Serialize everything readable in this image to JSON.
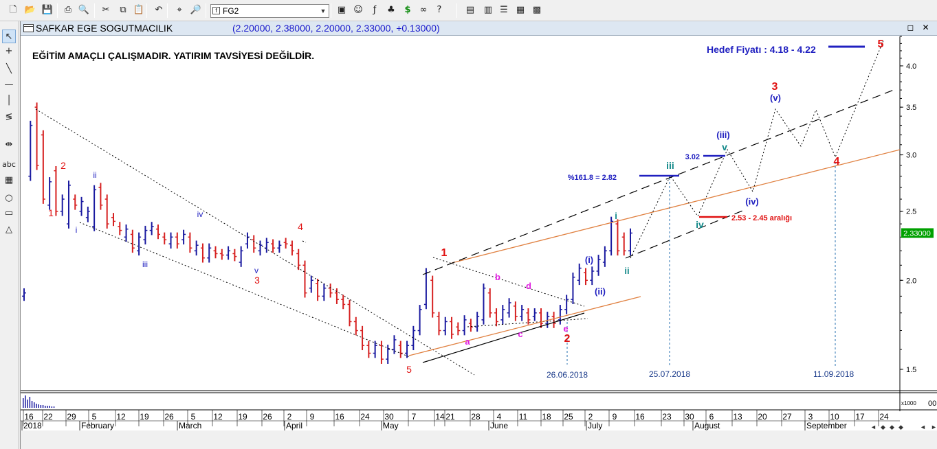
{
  "toolbar": {
    "symbol": "FG2",
    "icons": [
      "new-icon",
      "open-icon",
      "save-icon",
      "print-icon",
      "print-preview-icon",
      "cut-icon",
      "copy-icon",
      "paste-icon",
      "undo-icon",
      "crosshair-icon",
      "zoom-icon",
      "indicator-icon",
      "expert-icon",
      "function-icon",
      "tree-icon",
      "dollar-icon",
      "binoculars-icon",
      "help-icon",
      "cascade-icon",
      "tile-vertical-icon",
      "tile-horizontal-icon",
      "tile-grid-icon",
      "tile-config-icon"
    ]
  },
  "left_tools": [
    "pointer-icon",
    "crosshair-tool-icon",
    "trendline-tool-icon",
    "horizontal-line-icon",
    "vertical-line-icon",
    "fibonacci-icon",
    "spread-icon",
    "text-tool-icon",
    "grid-tool-icon",
    "ellipse-tool-icon",
    "rectangle-tool-icon",
    "triangle-tool-icon"
  ],
  "left_tools_text": {
    "text_tool": "abc"
  },
  "window": {
    "title": "SAFKAR EGE SOGUTMACILIK",
    "ohlc": "(2.20000, 2.38000, 2.20000, 2.33000, +0.13000)",
    "buttons": {
      "restore": "◻",
      "close": "✕"
    }
  },
  "disclaimer": "EĞİTİM AMAÇLI ÇALIŞMADIR. YATIRIM TAVSİYESİ DEĞİLDİR.",
  "target_text": "Hedef Fiyatı : 4.18 - 4.22",
  "colors": {
    "up": "#1a1aa0",
    "down": "#d62020",
    "wave_red": "#e01010",
    "wave_blue": "#2020c0",
    "wave_teal": "#118888",
    "wave_magenta": "#e020e0",
    "orange_line": "#e08040",
    "price_box": "#00a000"
  },
  "chart_data": {
    "type": "candlestick",
    "scale": "log",
    "ylim": [
      1.4,
      4.4
    ],
    "y_ticks": [
      "1.5",
      "2.0",
      "2.5",
      "3.0",
      "3.5",
      "4.0"
    ],
    "last_price": "2.33000",
    "x_day_ticks": [
      "16",
      "22",
      "29",
      "5",
      "12",
      "19",
      "26",
      "5",
      "12",
      "19",
      "26",
      "2",
      "9",
      "16",
      "24",
      "30",
      "7",
      "14",
      "21",
      "28",
      "4",
      "11",
      "18",
      "25",
      "2",
      "9",
      "16",
      "23",
      "30",
      "6",
      "13",
      "20",
      "27",
      "3",
      "10",
      "17",
      "24"
    ],
    "x_month_ticks": [
      "2018",
      "February",
      "March",
      "April",
      "May",
      "June",
      "July",
      "August",
      "September"
    ],
    "volume_label": "x1000",
    "volume_axis_label": "00",
    "price_path": [
      [
        1.9,
        1.92
      ],
      [
        2.8,
        3.3
      ],
      [
        3.5,
        2.9
      ],
      [
        3.2,
        2.6
      ],
      [
        2.55,
        2.75
      ],
      [
        2.85,
        2.5
      ],
      [
        2.5,
        2.6
      ],
      [
        2.4,
        2.72
      ],
      [
        2.6,
        2.55
      ],
      [
        2.5,
        2.58
      ],
      [
        2.45,
        2.5
      ],
      [
        2.38,
        2.68
      ],
      [
        2.7,
        2.55
      ],
      [
        2.6,
        2.4
      ],
      [
        2.45,
        2.42
      ],
      [
        2.38,
        2.35
      ],
      [
        2.3,
        2.36
      ],
      [
        2.32,
        2.22
      ],
      [
        2.2,
        2.3
      ],
      [
        2.28,
        2.35
      ],
      [
        2.35,
        2.38
      ],
      [
        2.36,
        2.32
      ],
      [
        2.3,
        2.28
      ],
      [
        2.25,
        2.3
      ],
      [
        2.3,
        2.25
      ],
      [
        2.28,
        2.32
      ],
      [
        2.3,
        2.22
      ],
      [
        2.2,
        2.24
      ],
      [
        2.22,
        2.15
      ],
      [
        2.15,
        2.22
      ],
      [
        2.2,
        2.18
      ],
      [
        2.18,
        2.17
      ],
      [
        2.17,
        2.2
      ],
      [
        2.18,
        2.16
      ],
      [
        2.12,
        2.2
      ],
      [
        2.25,
        2.3
      ],
      [
        2.28,
        2.22
      ],
      [
        2.2,
        2.24
      ],
      [
        2.22,
        2.26
      ],
      [
        2.25,
        2.22
      ],
      [
        2.22,
        2.24
      ],
      [
        2.26,
        2.25
      ],
      [
        2.24,
        2.2
      ],
      [
        2.18,
        2.1
      ],
      [
        2.1,
        1.92
      ],
      [
        1.95,
        2.0
      ],
      [
        1.98,
        1.9
      ],
      [
        1.9,
        1.95
      ],
      [
        1.95,
        1.92
      ],
      [
        1.92,
        1.88
      ],
      [
        1.88,
        1.85
      ],
      [
        1.85,
        1.75
      ],
      [
        1.75,
        1.7
      ],
      [
        1.7,
        1.62
      ],
      [
        1.62,
        1.58
      ],
      [
        1.58,
        1.62
      ],
      [
        1.62,
        1.55
      ],
      [
        1.55,
        1.6
      ],
      [
        1.6,
        1.65
      ],
      [
        1.62,
        1.58
      ],
      [
        1.58,
        1.62
      ],
      [
        1.62,
        1.7
      ],
      [
        1.7,
        1.82
      ],
      [
        1.85,
        2.05
      ],
      [
        2.0,
        1.8
      ],
      [
        1.78,
        1.7
      ],
      [
        1.7,
        1.75
      ],
      [
        1.75,
        1.68
      ],
      [
        1.72,
        1.7
      ],
      [
        1.7,
        1.76
      ],
      [
        1.74,
        1.72
      ],
      [
        1.72,
        1.78
      ],
      [
        1.76,
        1.95
      ],
      [
        1.92,
        1.8
      ],
      [
        1.8,
        1.75
      ],
      [
        1.76,
        1.82
      ],
      [
        1.8,
        1.86
      ],
      [
        1.84,
        1.78
      ],
      [
        1.78,
        1.82
      ],
      [
        1.8,
        1.76
      ],
      [
        1.78,
        1.8
      ],
      [
        1.8,
        1.74
      ],
      [
        1.74,
        1.78
      ],
      [
        1.78,
        1.74
      ],
      [
        1.76,
        1.82
      ],
      [
        1.82,
        1.88
      ],
      [
        1.88,
        2.02
      ],
      [
        2.0,
        2.08
      ],
      [
        2.05,
        2.0
      ],
      [
        2.0,
        2.06
      ],
      [
        2.06,
        2.14
      ],
      [
        2.12,
        2.2
      ],
      [
        2.2,
        2.42
      ],
      [
        2.4,
        2.2
      ],
      [
        2.3,
        2.2
      ],
      [
        2.2,
        2.33
      ]
    ],
    "wave_labels": {
      "w1a": "1",
      "w2a": "2",
      "wia": "i",
      "wiia": "ii",
      "wiiia": "iii",
      "wiva": "iv",
      "wva": "v",
      "w3a": "3",
      "w4a": "4",
      "w5a": "5",
      "w1b": "1",
      "w2b": "2",
      "wa": "a",
      "wb": "b",
      "wc": "c",
      "wd": "d",
      "we": "e",
      "wi_p": "(i)",
      "wii_p": "(ii)",
      "wi_small": "i",
      "wii_small": "ii",
      "wiii_b": "iii",
      "wiv_b": "iv",
      "wv_b": "v",
      "wiii_p": "(iii)",
      "wiv_p": "(iv)",
      "wv_p": "(v)",
      "w3b": "3",
      "w4b": "4",
      "w5b": "5"
    },
    "annotations": {
      "fib": "%161.8 = 2.82",
      "level302": "3.02",
      "range": "2.53 - 2.45 aralığı",
      "date1": "26.06.2018",
      "date2": "25.07.2018",
      "date3": "11.09.2018"
    }
  }
}
